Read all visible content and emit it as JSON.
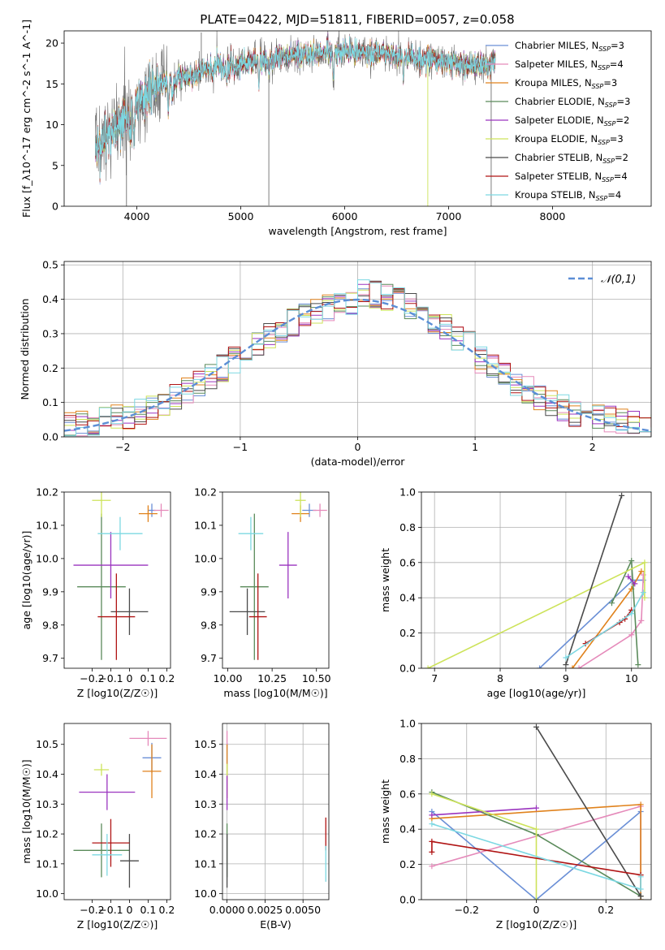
{
  "figure": {
    "title": "PLATE=0422, MJD=51811, FIBERID=0057, z=0.058"
  },
  "colors": {
    "Chabrier MILES": "#6a8fd6",
    "Salpeter MILES": "#e58aba",
    "Kroupa MILES": "#e0821c",
    "Chabrier ELODIE": "#5a8a5a",
    "Salpeter ELODIE": "#9a34bf",
    "Kroupa ELODIE": "#cde35a",
    "Chabrier STELIB": "#4a4a4a",
    "Salpeter STELIB": "#b01414",
    "Kroupa STELIB": "#7cd8e2"
  },
  "chart_data": [
    {
      "id": "spectrum",
      "type": "line",
      "xlabel": "wavelength [Angstrom, rest frame]",
      "ylabel": "Flux [f_λ10^-17 erg cm^-2 s^-1 A^-1]",
      "xlim": [
        3300,
        8950
      ],
      "ylim": [
        0,
        21.5
      ],
      "xticks": [
        4000,
        5000,
        6000,
        7000,
        8000
      ],
      "yticks": [
        0,
        5,
        10,
        15,
        20
      ],
      "grid": false,
      "legend_position": "upper right",
      "data_range": [
        3600,
        7450
      ],
      "continuum_anchors": [
        [
          3600,
          6
        ],
        [
          3700,
          8.5
        ],
        [
          3900,
          11
        ],
        [
          4000,
          12.5
        ],
        [
          4100,
          14
        ],
        [
          4300,
          15.2
        ],
        [
          4600,
          16.5
        ],
        [
          5000,
          17.5
        ],
        [
          5400,
          18.3
        ],
        [
          5700,
          18.8
        ],
        [
          6000,
          19
        ],
        [
          6300,
          18.8
        ],
        [
          6600,
          18.3
        ],
        [
          6900,
          17.7
        ],
        [
          7200,
          17.2
        ],
        [
          7450,
          17.6
        ]
      ],
      "series": [
        {
          "name": "Chabrier MILES",
          "nssp": "3"
        },
        {
          "name": "Salpeter MILES",
          "nssp": "4"
        },
        {
          "name": "Kroupa MILES",
          "nssp": "3"
        },
        {
          "name": "Chabrier ELODIE",
          "nssp": "3"
        },
        {
          "name": "Salpeter ELODIE",
          "nssp": "2"
        },
        {
          "name": "Kroupa ELODIE",
          "nssp": "3"
        },
        {
          "name": "Chabrier STELIB",
          "nssp": "2"
        },
        {
          "name": "Salpeter STELIB",
          "nssp": "4"
        },
        {
          "name": "Kroupa STELIB",
          "nssp": "4"
        }
      ]
    },
    {
      "id": "residuals",
      "type": "histogram",
      "xlabel": "(data-model)/error",
      "ylabel": "Normed distribution",
      "xlim": [
        -2.5,
        2.5
      ],
      "ylim": [
        0,
        0.51
      ],
      "xticks": [
        -2,
        -1,
        0,
        1,
        2
      ],
      "yticks": [
        0.0,
        0.1,
        0.2,
        0.3,
        0.4,
        0.5
      ],
      "grid": true,
      "bin_width": 0.1,
      "legend": "𝒩(0,1)",
      "legend_position": "upper right",
      "curve": {
        "type": "gaussian",
        "mean": 0,
        "sigma": 1
      }
    },
    {
      "id": "age_vs_Z",
      "type": "errorbar",
      "xlabel": "Z [log10(Z/Z☉)]",
      "ylabel": "age [log10(age/yr)]",
      "xlim": [
        -0.35,
        0.22
      ],
      "ylim": [
        9.67,
        10.2
      ],
      "xticks": [
        -0.2,
        -0.1,
        0.0,
        0.1,
        0.2
      ],
      "yticks": [
        9.7,
        9.8,
        9.9,
        10.0,
        10.1,
        10.2
      ],
      "grid": false,
      "points": [
        {
          "series": "Chabrier MILES",
          "x": 0.12,
          "y": 10.145,
          "xerr": 0.02,
          "yerr": 0.02
        },
        {
          "series": "Salpeter MILES",
          "x": 0.17,
          "y": 10.145,
          "xerr": 0.04,
          "yerr": 0.02
        },
        {
          "series": "Kroupa MILES",
          "x": 0.1,
          "y": 10.135,
          "xerr": 0.05,
          "yerr": 0.025
        },
        {
          "series": "Chabrier ELODIE",
          "x": -0.15,
          "y": 9.915,
          "xerr": 0.13,
          "yerr": 0.22
        },
        {
          "series": "Salpeter ELODIE",
          "x": -0.1,
          "y": 9.98,
          "xerr": 0.2,
          "yerr": 0.1
        },
        {
          "series": "Kroupa ELODIE",
          "x": -0.15,
          "y": 10.175,
          "xerr": 0.05,
          "yerr": 0.05
        },
        {
          "series": "Chabrier STELIB",
          "x": 0.0,
          "y": 9.84,
          "xerr": 0.1,
          "yerr": 0.07
        },
        {
          "series": "Salpeter STELIB",
          "x": -0.07,
          "y": 9.825,
          "xerr": 0.1,
          "yerr": 0.13
        },
        {
          "series": "Kroupa STELIB",
          "x": -0.05,
          "y": 10.075,
          "xerr": 0.12,
          "yerr": 0.05
        }
      ]
    },
    {
      "id": "age_vs_mass",
      "type": "errorbar",
      "xlabel": "mass [log10(M/M☉)]",
      "ylabel": "",
      "xlim": [
        9.97,
        10.57
      ],
      "ylim": [
        9.67,
        10.2
      ],
      "xticks": [
        10.0,
        10.25,
        10.5
      ],
      "tick_labels": [
        "10.00",
        "10.25",
        "10.50"
      ],
      "yticks": [
        9.7,
        9.8,
        9.9,
        10.0,
        10.1,
        10.2
      ],
      "grid": false,
      "points": [
        {
          "series": "Chabrier MILES",
          "x": 10.46,
          "y": 10.145,
          "xerr": 0.04,
          "yerr": 0.02
        },
        {
          "series": "Salpeter MILES",
          "x": 10.52,
          "y": 10.145,
          "xerr": 0.04,
          "yerr": 0.02
        },
        {
          "series": "Kroupa MILES",
          "x": 10.41,
          "y": 10.135,
          "xerr": 0.05,
          "yerr": 0.025
        },
        {
          "series": "Chabrier ELODIE",
          "x": 10.15,
          "y": 9.915,
          "xerr": 0.08,
          "yerr": 0.22
        },
        {
          "series": "Salpeter ELODIE",
          "x": 10.34,
          "y": 9.98,
          "xerr": 0.05,
          "yerr": 0.1
        },
        {
          "series": "Kroupa ELODIE",
          "x": 10.41,
          "y": 10.175,
          "xerr": 0.03,
          "yerr": 0.05
        },
        {
          "series": "Chabrier STELIB",
          "x": 10.11,
          "y": 9.84,
          "xerr": 0.1,
          "yerr": 0.07
        },
        {
          "series": "Salpeter STELIB",
          "x": 10.17,
          "y": 9.825,
          "xerr": 0.05,
          "yerr": 0.13
        },
        {
          "series": "Kroupa STELIB",
          "x": 10.13,
          "y": 10.075,
          "xerr": 0.07,
          "yerr": 0.05
        }
      ]
    },
    {
      "id": "mass_weight_vs_age",
      "type": "line",
      "xlabel": "age [log10(age/yr)]",
      "ylabel": "mass weight",
      "xlim": [
        6.8,
        10.3
      ],
      "ylim": [
        0.0,
        1.0
      ],
      "xticks": [
        7,
        8,
        9,
        10
      ],
      "yticks": [
        0.0,
        0.2,
        0.4,
        0.6,
        0.8,
        1.0
      ],
      "grid": true,
      "series": [
        {
          "name": "Chabrier MILES",
          "x": [
            8.6,
            10.02,
            10.18
          ],
          "y": [
            0.0,
            0.5,
            0.5
          ]
        },
        {
          "name": "Salpeter MILES",
          "x": [
            9.2,
            10.0,
            10.15,
            10.18
          ],
          "y": [
            0.0,
            0.19,
            0.27,
            0.53
          ]
        },
        {
          "name": "Kroupa MILES",
          "x": [
            9.1,
            10.0,
            10.15
          ],
          "y": [
            0.0,
            0.45,
            0.55
          ]
        },
        {
          "name": "Chabrier ELODIE",
          "x": [
            9.7,
            10.0,
            10.1
          ],
          "y": [
            0.37,
            0.61,
            0.02
          ]
        },
        {
          "name": "Salpeter ELODIE",
          "x": [
            9.95,
            10.05
          ],
          "y": [
            0.52,
            0.48
          ]
        },
        {
          "name": "Kroupa ELODIE",
          "x": [
            6.9,
            10.2,
            10.2
          ],
          "y": [
            0.0,
            0.6,
            0.4
          ]
        },
        {
          "name": "Chabrier STELIB",
          "x": [
            9.0,
            9.85
          ],
          "y": [
            0.02,
            0.98
          ]
        },
        {
          "name": "Salpeter STELIB",
          "x": [
            9.3,
            9.82,
            9.9,
            10.0
          ],
          "y": [
            0.14,
            0.26,
            0.28,
            0.33
          ]
        },
        {
          "name": "Kroupa STELIB",
          "x": [
            9.0,
            10.0,
            10.18
          ],
          "y": [
            0.06,
            0.31,
            0.43
          ]
        }
      ]
    },
    {
      "id": "mass_vs_Z",
      "type": "errorbar",
      "xlabel": "Z [log10(Z/Z☉)]",
      "ylabel": "mass [log10(M/M☉)]",
      "xlim": [
        -0.35,
        0.22
      ],
      "ylim": [
        9.98,
        10.57
      ],
      "xticks": [
        -0.2,
        -0.1,
        0.0,
        0.1,
        0.2
      ],
      "yticks": [
        10.0,
        10.1,
        10.2,
        10.3,
        10.4,
        10.5
      ],
      "grid": false,
      "points": [
        {
          "series": "Chabrier MILES",
          "x": 0.12,
          "y": 10.455,
          "xerr": 0.05,
          "yerr": 0.05
        },
        {
          "series": "Salpeter MILES",
          "x": 0.1,
          "y": 10.52,
          "xerr": 0.1,
          "yerr": 0.025
        },
        {
          "series": "Kroupa MILES",
          "x": 0.12,
          "y": 10.41,
          "xerr": 0.05,
          "yerr": 0.09
        },
        {
          "series": "Chabrier ELODIE",
          "x": -0.15,
          "y": 10.145,
          "xerr": 0.15,
          "yerr": 0.09
        },
        {
          "series": "Salpeter ELODIE",
          "x": -0.12,
          "y": 10.34,
          "xerr": 0.15,
          "yerr": 0.06
        },
        {
          "series": "Kroupa ELODIE",
          "x": -0.15,
          "y": 10.415,
          "xerr": 0.04,
          "yerr": 0.02
        },
        {
          "series": "Chabrier STELIB",
          "x": 0.0,
          "y": 10.11,
          "xerr": 0.05,
          "yerr": 0.09
        },
        {
          "series": "Salpeter STELIB",
          "x": -0.1,
          "y": 10.17,
          "xerr": 0.1,
          "yerr": 0.08
        },
        {
          "series": "Kroupa STELIB",
          "x": -0.12,
          "y": 10.13,
          "xerr": 0.08,
          "yerr": 0.07
        }
      ]
    },
    {
      "id": "mass_vs_ebv",
      "type": "errorbar",
      "xlabel": "E(B-V)",
      "ylabel": "",
      "xlim": [
        -0.0003,
        0.0067
      ],
      "ylim": [
        9.98,
        10.57
      ],
      "xticks": [
        0.0,
        0.0025,
        0.005
      ],
      "tick_labels": [
        "0.0000",
        "0.0025",
        "0.0050"
      ],
      "yticks": [
        10.0,
        10.1,
        10.2,
        10.3,
        10.4,
        10.5
      ],
      "grid": true,
      "points": [
        {
          "series": "Chabrier MILES",
          "x": 0.0,
          "y": 10.455,
          "xerr": 0,
          "yerr": 0.05
        },
        {
          "series": "Salpeter MILES",
          "x": 0.0,
          "y": 10.52,
          "xerr": 0,
          "yerr": 0.025
        },
        {
          "series": "Kroupa MILES",
          "x": 0.0,
          "y": 10.41,
          "xerr": 0,
          "yerr": 0.09
        },
        {
          "series": "Chabrier ELODIE",
          "x": 0.0,
          "y": 10.145,
          "xerr": 0,
          "yerr": 0.09
        },
        {
          "series": "Salpeter ELODIE",
          "x": 0.0,
          "y": 10.34,
          "xerr": 0,
          "yerr": 0.06
        },
        {
          "series": "Kroupa ELODIE",
          "x": 0.0,
          "y": 10.415,
          "xerr": 0,
          "yerr": 0.02
        },
        {
          "series": "Chabrier STELIB",
          "x": 0.0,
          "y": 10.11,
          "xerr": 0,
          "yerr": 0.09
        },
        {
          "series": "Salpeter STELIB",
          "x": 0.0065,
          "y": 10.2,
          "xerr": 0,
          "yerr": 0.055
        },
        {
          "series": "Kroupa STELIB",
          "x": 0.0065,
          "y": 10.1,
          "xerr": 0,
          "yerr": 0.06
        }
      ]
    },
    {
      "id": "mass_weight_vs_Z",
      "type": "line",
      "xlabel": "Z [log10(Z/Z☉)]",
      "ylabel": "mass weight",
      "xlim": [
        -0.33,
        0.33
      ],
      "ylim": [
        0.0,
        1.0
      ],
      "xticks": [
        -0.2,
        0.0,
        0.2
      ],
      "yticks": [
        0.0,
        0.2,
        0.4,
        0.6,
        0.8,
        1.0
      ],
      "grid": true,
      "series": [
        {
          "name": "Chabrier MILES",
          "x": [
            -0.3,
            0.0,
            0.3,
            0.3
          ],
          "y": [
            0.5,
            0.0,
            0.5,
            0.0
          ]
        },
        {
          "name": "Salpeter MILES",
          "x": [
            -0.3,
            0.3,
            0.3
          ],
          "y": [
            0.19,
            0.53,
            0.02
          ]
        },
        {
          "name": "Kroupa MILES",
          "x": [
            -0.3,
            0.3,
            0.3
          ],
          "y": [
            0.46,
            0.54,
            0.0
          ]
        },
        {
          "name": "Chabrier ELODIE",
          "x": [
            -0.3,
            0.0,
            0.3
          ],
          "y": [
            0.61,
            0.37,
            0.02
          ]
        },
        {
          "name": "Salpeter ELODIE",
          "x": [
            -0.3,
            0.0
          ],
          "y": [
            0.48,
            0.52
          ]
        },
        {
          "name": "Kroupa ELODIE",
          "x": [
            -0.3,
            0.0,
            0.0
          ],
          "y": [
            0.6,
            0.4,
            0.0
          ]
        },
        {
          "name": "Chabrier STELIB",
          "x": [
            0.0,
            0.3
          ],
          "y": [
            0.98,
            0.02
          ]
        },
        {
          "name": "Salpeter STELIB",
          "x": [
            -0.3,
            -0.3,
            0.3
          ],
          "y": [
            0.27,
            0.33,
            0.14
          ]
        },
        {
          "name": "Kroupa STELIB",
          "x": [
            -0.3,
            0.3,
            0.3
          ],
          "y": [
            0.43,
            0.06,
            0.13
          ]
        }
      ]
    }
  ]
}
